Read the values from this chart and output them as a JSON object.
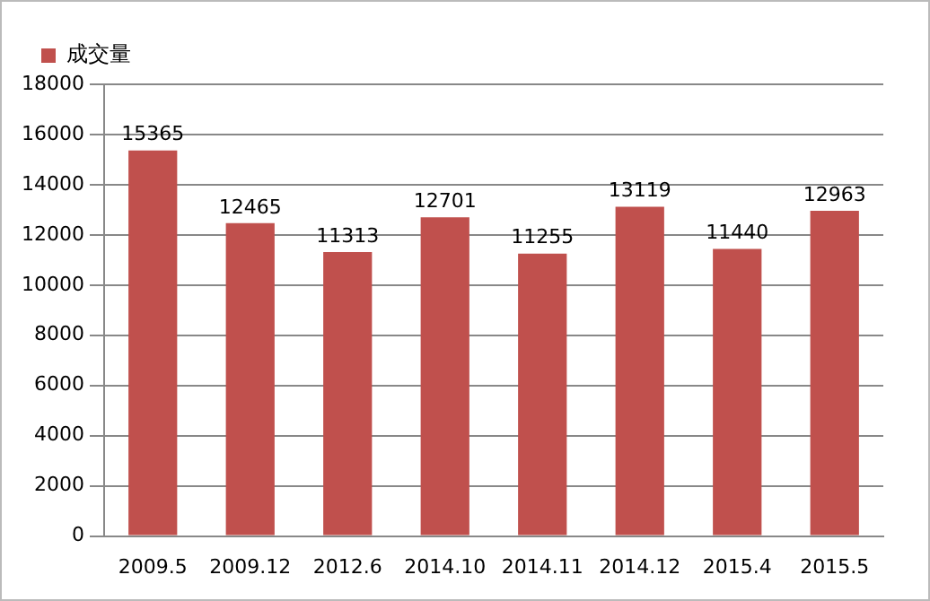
{
  "chart_data": {
    "type": "bar",
    "categories": [
      "2009.5",
      "2009.12",
      "2012.6",
      "2014.10",
      "2014.11",
      "2014.12",
      "2015.4",
      "2015.5"
    ],
    "series": [
      {
        "name": "成交量",
        "color": "#c0504d",
        "values": [
          15365,
          12465,
          11313,
          12701,
          11255,
          13119,
          11440,
          12963
        ]
      }
    ],
    "ylim": [
      0,
      18000
    ],
    "yticks": [
      0,
      2000,
      4000,
      6000,
      8000,
      10000,
      12000,
      14000,
      16000,
      18000
    ],
    "grid": "y",
    "legend": "top left",
    "data_labels": true
  }
}
